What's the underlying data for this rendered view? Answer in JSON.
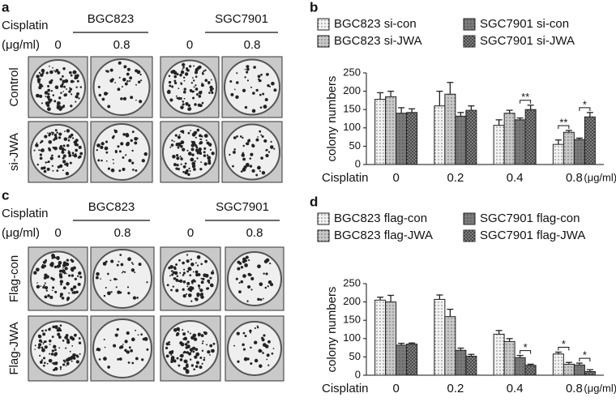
{
  "panels": [
    {
      "letter": "a",
      "dose_title": "Cisplatin",
      "unit": "(μg/ml)",
      "cell_lines": [
        "BGC823",
        "SGC7901"
      ],
      "doses": [
        "0",
        "0.8",
        "0",
        "0.8"
      ],
      "rows": [
        "Control",
        "si-JWA"
      ]
    },
    {
      "letter": "c",
      "dose_title": "Cisplatin",
      "unit": "(μg/ml)",
      "cell_lines": [
        "BGC823",
        "SGC7901"
      ],
      "doses": [
        "0",
        "0.8",
        "0",
        "0.8"
      ],
      "rows": [
        "Flag-con",
        "Flag-JWA"
      ]
    }
  ],
  "chart_data": [
    {
      "type": "bar",
      "letter": "b",
      "y_label": "colony numbers",
      "x_label": "Cisplatin",
      "x_unit": "(μg/ml)",
      "categories": [
        "0",
        "0.2",
        "0.4",
        "0.8"
      ],
      "series": [
        {
          "name": "BGC823 si-con",
          "color": "#f2f2f2",
          "values": [
            178,
            160,
            107,
            55
          ],
          "errors": [
            18,
            40,
            15,
            12
          ]
        },
        {
          "name": "BGC823 si-JWA",
          "color": "#c8c8c8",
          "values": [
            185,
            192,
            140,
            88
          ],
          "errors": [
            15,
            32,
            8,
            5
          ]
        },
        {
          "name": "SGC7901 si-con",
          "color": "#7a7a7a",
          "values": [
            140,
            132,
            122,
            68
          ],
          "errors": [
            15,
            10,
            5,
            4
          ]
        },
        {
          "name": "SGC7901 si-JWA",
          "color": "#4a4a4a",
          "values": [
            142,
            148,
            150,
            130
          ],
          "errors": [
            10,
            12,
            12,
            12
          ]
        }
      ],
      "ylim": [
        0,
        250
      ],
      "yticks": [
        0,
        50,
        100,
        150,
        200,
        250
      ],
      "grid": false,
      "annotations": [
        {
          "text": "**",
          "category": "0.4",
          "between": [
            "SGC7901 si-con",
            "SGC7901 si-JWA"
          ]
        },
        {
          "text": "**",
          "category": "0.8",
          "between": [
            "BGC823 si-con",
            "BGC823 si-JWA"
          ]
        },
        {
          "text": "*",
          "category": "0.8",
          "between": [
            "SGC7901 si-con",
            "SGC7901 si-JWA"
          ]
        }
      ]
    },
    {
      "type": "bar",
      "letter": "d",
      "y_label": "colony numbers",
      "x_label": "Cisplatin",
      "x_unit": "(μg/ml)",
      "categories": [
        "0",
        "0.2",
        "0.4",
        "0.8"
      ],
      "series": [
        {
          "name": "BGC823 flag-con",
          "color": "#f2f2f2",
          "values": [
            205,
            207,
            112,
            58
          ],
          "errors": [
            8,
            12,
            10,
            5
          ]
        },
        {
          "name": "BGC823 flag-JWA",
          "color": "#c8c8c8",
          "values": [
            200,
            160,
            92,
            30
          ],
          "errors": [
            18,
            20,
            8,
            5
          ]
        },
        {
          "name": "SGC7901 flag-con",
          "color": "#7a7a7a",
          "values": [
            82,
            68,
            48,
            28
          ],
          "errors": [
            5,
            6,
            6,
            5
          ]
        },
        {
          "name": "SGC7901 flag-JWA",
          "color": "#4a4a4a",
          "values": [
            85,
            52,
            27,
            10
          ],
          "errors": [
            3,
            5,
            3,
            5
          ]
        }
      ],
      "ylim": [
        0,
        250
      ],
      "yticks": [
        0,
        50,
        100,
        150,
        200,
        250
      ],
      "grid": false,
      "annotations": [
        {
          "text": "*",
          "category": "0.4",
          "between": [
            "SGC7901 flag-con",
            "SGC7901 flag-JWA"
          ]
        },
        {
          "text": "*",
          "category": "0.8",
          "between": [
            "BGC823 flag-con",
            "BGC823 flag-JWA"
          ]
        },
        {
          "text": "*",
          "category": "0.8",
          "between": [
            "SGC7901 flag-con",
            "SGC7901 flag-JWA"
          ]
        }
      ]
    }
  ]
}
